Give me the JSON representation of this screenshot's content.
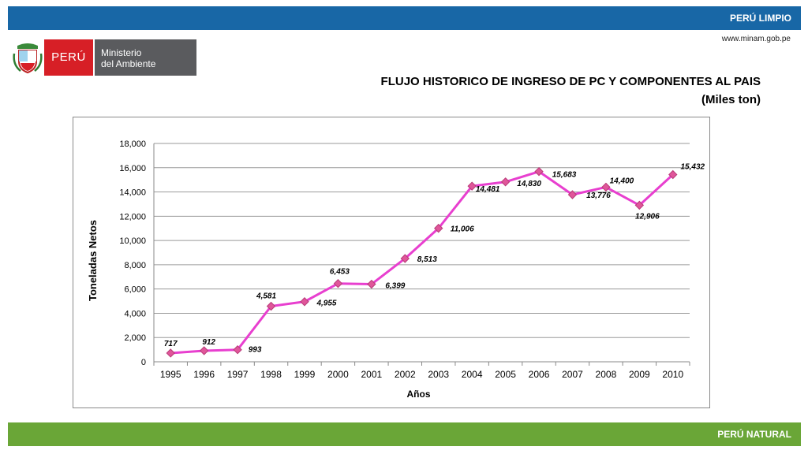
{
  "header": {
    "banner_label": "PERÚ LIMPIO",
    "url": "www.minam.gob.pe"
  },
  "logo": {
    "country": "PERÚ",
    "ministry_line1": "Ministerio",
    "ministry_line2": "del Ambiente"
  },
  "title": {
    "line1": "FLUJO HISTORICO DE INGRESO DE PC Y COMPONENTES AL PAIS",
    "line2": "(Miles ton)"
  },
  "footer": {
    "banner_label": "PERÚ NATURAL"
  },
  "colors": {
    "top_bar": "#1867a6",
    "bottom_bar": "#6aa637",
    "line": "#e83fcf",
    "marker": "#e0569a"
  },
  "chart_data": {
    "type": "line",
    "xlabel": "Años",
    "ylabel": "Toneladas Netos",
    "categories": [
      "1995",
      "1996",
      "1997",
      "1998",
      "1999",
      "2000",
      "2001",
      "2002",
      "2003",
      "2004",
      "2005",
      "2006",
      "2007",
      "2008",
      "2009",
      "2010"
    ],
    "values": [
      717,
      912,
      993,
      4581,
      4955,
      6453,
      6399,
      8513,
      11006,
      14481,
      14830,
      15683,
      13776,
      14400,
      12906,
      15432
    ],
    "data_labels": [
      "717",
      "912",
      "993",
      "4,581",
      "4,955",
      "6,453",
      "6,399",
      "8,513",
      "11,006",
      "14,481",
      "14,830",
      "15,683",
      "13,776",
      "14,400",
      "12,906",
      "15,432"
    ],
    "ylim": [
      0,
      18000
    ],
    "yticks": [
      0,
      2000,
      4000,
      6000,
      8000,
      10000,
      12000,
      14000,
      16000,
      18000
    ],
    "ytick_labels": [
      "0",
      "2,000",
      "4,000",
      "6,000",
      "8,000",
      "10,000",
      "12,000",
      "14,000",
      "16,000",
      "18,000"
    ],
    "grid": true,
    "marker": "diamond"
  }
}
